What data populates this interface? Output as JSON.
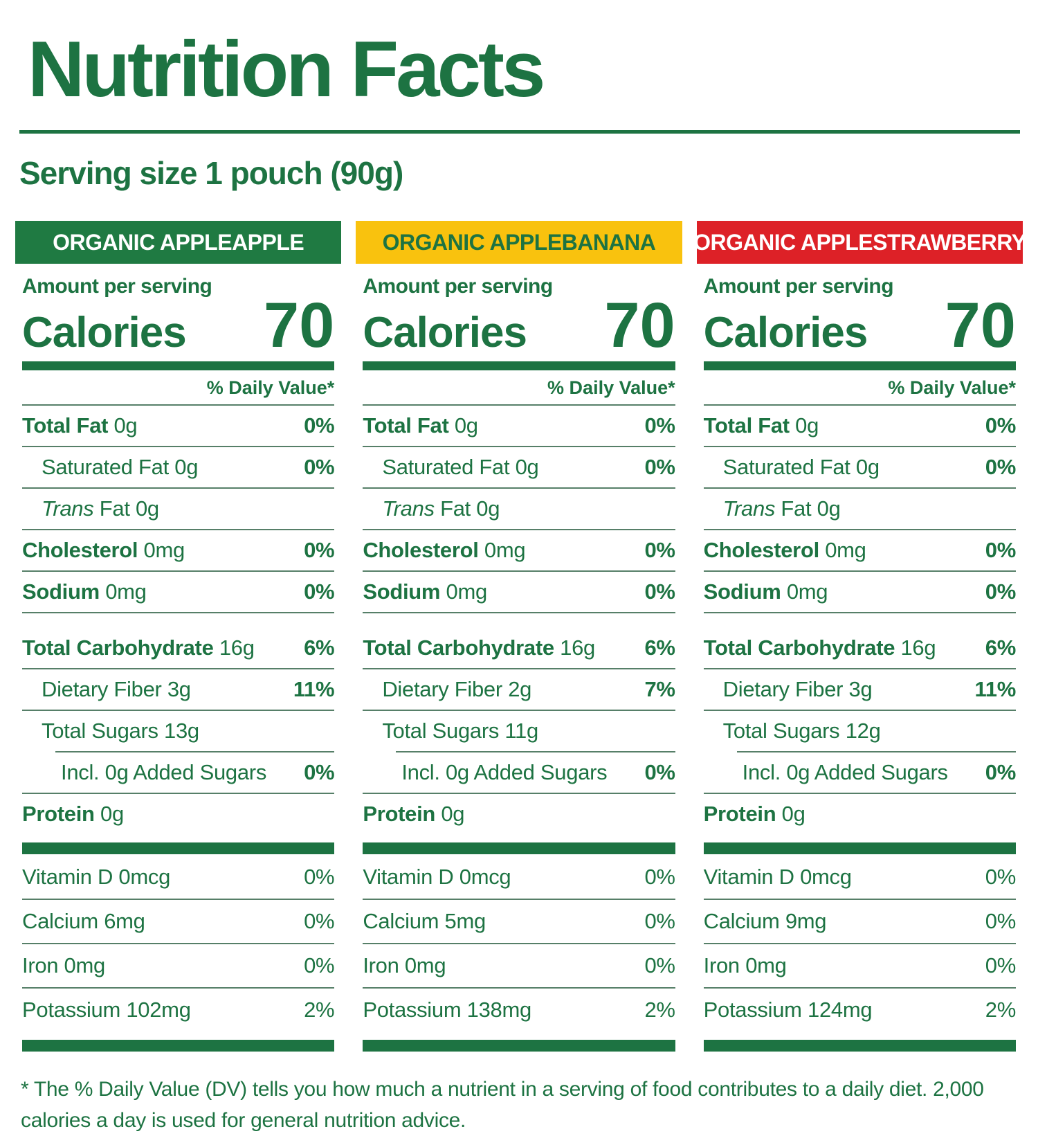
{
  "title": "Nutrition Facts",
  "serving_size": "Serving size 1 pouch (90g)",
  "footnote": "* The % Daily Value (DV) tells you how much a nutrient in a serving of food contributes to a daily diet. 2,000 calories a day is used for general nutrition advice.",
  "colors": {
    "text_green": "#1d7342",
    "hairline": "#567f68",
    "header_green_bg": "#1f7a42",
    "header_yellow_bg": "#f9c20e",
    "header_red_bg": "#dd2127",
    "header_white_text": "#ffffff"
  },
  "shared": {
    "amount_per_serving": "Amount per serving",
    "calories_label": "Calories",
    "daily_value_label": "% Daily Value*"
  },
  "columns": [
    {
      "id": "organic-appleapple",
      "header": {
        "label": "ORGANIC APPLEAPPLE",
        "bg": "#1f7a42",
        "fg": "#ffffff"
      },
      "calories": "70",
      "rows": [
        {
          "label": "Total Fat",
          "amount": "0g",
          "dv": "0%",
          "style": "major",
          "rule": "full"
        },
        {
          "label": "Saturated Fat",
          "amount": "0g",
          "dv": "0%",
          "style": "sub",
          "rule": "full"
        },
        {
          "label": "Trans",
          "label_suffix": " Fat",
          "amount": "0g",
          "dv": "",
          "style": "sub",
          "italic_first": true,
          "rule": "full"
        },
        {
          "label": "Cholesterol",
          "amount": "0mg",
          "dv": "0%",
          "style": "major",
          "rule": "full"
        },
        {
          "label": "Sodium",
          "amount": "0mg",
          "dv": "0%",
          "style": "major",
          "rule": "full"
        },
        {
          "label": "Total Carbohydrate",
          "amount": "16g",
          "dv": "6%",
          "style": "major",
          "rule": "full",
          "gap_before": true
        },
        {
          "label": "Dietary Fiber",
          "amount": "3g",
          "dv": "11%",
          "style": "sub",
          "rule": "full"
        },
        {
          "label": "Total Sugars",
          "amount": "13g",
          "dv": "",
          "style": "sub",
          "rule": "indent"
        },
        {
          "label": "Incl. 0g Added Sugars",
          "amount": "",
          "dv": "0%",
          "style": "sub2",
          "rule": "full"
        },
        {
          "label": "Protein",
          "amount": "0g",
          "dv": "",
          "style": "major",
          "rule": "none"
        },
        {
          "type": "bar"
        },
        {
          "label": "Vitamin D",
          "amount": "0mcg",
          "dv": "0%",
          "style": "plain",
          "rule": "full"
        },
        {
          "label": "Calcium",
          "amount": "6mg",
          "dv": "0%",
          "style": "plain",
          "rule": "full"
        },
        {
          "label": "Iron",
          "amount": "0mg",
          "dv": "0%",
          "style": "plain",
          "rule": "full"
        },
        {
          "label": "Potassium",
          "amount": "102mg",
          "dv": "2%",
          "style": "plain",
          "rule": "none"
        },
        {
          "type": "bar"
        }
      ]
    },
    {
      "id": "organic-applebanana",
      "header": {
        "label": "ORGANIC APPLEBANANA",
        "bg": "#f9c20e",
        "fg": "#1d7342"
      },
      "calories": "70",
      "rows": [
        {
          "label": "Total Fat",
          "amount": "0g",
          "dv": "0%",
          "style": "major",
          "rule": "full"
        },
        {
          "label": "Saturated Fat",
          "amount": "0g",
          "dv": "0%",
          "style": "sub",
          "rule": "full"
        },
        {
          "label": "Trans",
          "label_suffix": " Fat",
          "amount": "0g",
          "dv": "",
          "style": "sub",
          "italic_first": true,
          "rule": "full"
        },
        {
          "label": "Cholesterol",
          "amount": "0mg",
          "dv": "0%",
          "style": "major",
          "rule": "full"
        },
        {
          "label": "Sodium",
          "amount": "0mg",
          "dv": "0%",
          "style": "major",
          "rule": "full"
        },
        {
          "label": "Total Carbohydrate",
          "amount": "16g",
          "dv": "6%",
          "style": "major",
          "rule": "full",
          "gap_before": true
        },
        {
          "label": "Dietary Fiber",
          "amount": "2g",
          "dv": "7%",
          "style": "sub",
          "rule": "full"
        },
        {
          "label": "Total Sugars",
          "amount": "11g",
          "dv": "",
          "style": "sub",
          "rule": "indent"
        },
        {
          "label": "Incl. 0g Added Sugars",
          "amount": "",
          "dv": "0%",
          "style": "sub2",
          "rule": "full"
        },
        {
          "label": "Protein",
          "amount": "0g",
          "dv": "",
          "style": "major",
          "rule": "none"
        },
        {
          "type": "bar"
        },
        {
          "label": "Vitamin D",
          "amount": "0mcg",
          "dv": "0%",
          "style": "plain",
          "rule": "full"
        },
        {
          "label": "Calcium",
          "amount": "5mg",
          "dv": "0%",
          "style": "plain",
          "rule": "full"
        },
        {
          "label": "Iron",
          "amount": "0mg",
          "dv": "0%",
          "style": "plain",
          "rule": "full"
        },
        {
          "label": "Potassium",
          "amount": "138mg",
          "dv": "2%",
          "style": "plain",
          "rule": "none"
        },
        {
          "type": "bar"
        }
      ]
    },
    {
      "id": "organic-applestrawberry",
      "header": {
        "label": "ORGANIC APPLESTRAWBERRY",
        "bg": "#dd2127",
        "fg": "#ffffff"
      },
      "calories": "70",
      "rows": [
        {
          "label": "Total Fat",
          "amount": "0g",
          "dv": "0%",
          "style": "major",
          "rule": "full"
        },
        {
          "label": "Saturated Fat",
          "amount": "0g",
          "dv": "0%",
          "style": "sub",
          "rule": "full"
        },
        {
          "label": "Trans",
          "label_suffix": " Fat",
          "amount": "0g",
          "dv": "",
          "style": "sub",
          "italic_first": true,
          "rule": "full"
        },
        {
          "label": "Cholesterol",
          "amount": "0mg",
          "dv": "0%",
          "style": "major",
          "rule": "full"
        },
        {
          "label": "Sodium",
          "amount": "0mg",
          "dv": "0%",
          "style": "major",
          "rule": "full"
        },
        {
          "label": "Total Carbohydrate",
          "amount": "16g",
          "dv": "6%",
          "style": "major",
          "rule": "full",
          "gap_before": true
        },
        {
          "label": "Dietary Fiber",
          "amount": "3g",
          "dv": "11%",
          "style": "sub",
          "rule": "full"
        },
        {
          "label": "Total Sugars",
          "amount": "12g",
          "dv": "",
          "style": "sub",
          "rule": "indent"
        },
        {
          "label": "Incl. 0g Added Sugars",
          "amount": "",
          "dv": "0%",
          "style": "sub2",
          "rule": "full"
        },
        {
          "label": "Protein",
          "amount": "0g",
          "dv": "",
          "style": "major",
          "rule": "none"
        },
        {
          "type": "bar"
        },
        {
          "label": "Vitamin D",
          "amount": "0mcg",
          "dv": "0%",
          "style": "plain",
          "rule": "full"
        },
        {
          "label": "Calcium",
          "amount": "9mg",
          "dv": "0%",
          "style": "plain",
          "rule": "full"
        },
        {
          "label": "Iron",
          "amount": "0mg",
          "dv": "0%",
          "style": "plain",
          "rule": "full"
        },
        {
          "label": "Potassium",
          "amount": "124mg",
          "dv": "2%",
          "style": "plain",
          "rule": "none"
        },
        {
          "type": "bar"
        }
      ]
    }
  ]
}
